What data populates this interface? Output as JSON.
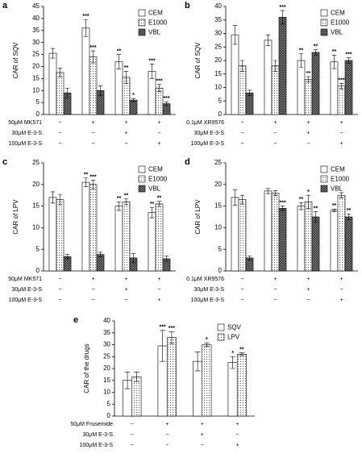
{
  "chart_data": [
    {
      "type": "bar",
      "panel": "a",
      "y_label": "CAR of SQV",
      "ylim": [
        0,
        45
      ],
      "yticks": [
        0,
        5,
        10,
        15,
        20,
        25,
        30,
        35,
        40,
        45
      ],
      "legend": "top-right",
      "series": [
        {
          "name": "CEM",
          "fill": "white",
          "values": [
            25.5,
            36,
            22,
            18
          ],
          "errors": [
            2,
            3.5,
            3,
            3
          ],
          "significance": [
            null,
            "***",
            "**",
            "***"
          ]
        },
        {
          "name": "E1000",
          "fill": "dots",
          "values": [
            17.5,
            24,
            15.5,
            11
          ],
          "errors": [
            1.8,
            2.5,
            2.5,
            1.5
          ],
          "significance": [
            null,
            "***",
            "**",
            "***"
          ]
        },
        {
          "name": "VBL",
          "fill": "hatch",
          "values": [
            9,
            10,
            6,
            4.5
          ],
          "errors": [
            2,
            2,
            0.7,
            0.8
          ],
          "significance": [
            null,
            null,
            "*",
            "***"
          ]
        }
      ],
      "conditions": [
        {
          "label": "50μM MK571",
          "marks": [
            "−",
            "+",
            "+",
            "+"
          ]
        },
        {
          "label": "30μM E-3-S",
          "marks": [
            "−",
            "−",
            "+",
            "−"
          ]
        },
        {
          "label": "100μM E-3-S",
          "marks": [
            "−",
            "−",
            "−",
            "+"
          ]
        }
      ]
    },
    {
      "type": "bar",
      "panel": "b",
      "y_label": "CAR of SQV",
      "ylim": [
        0,
        40
      ],
      "yticks": [
        0,
        5,
        10,
        15,
        20,
        25,
        30,
        35,
        40
      ],
      "legend": "top-right",
      "series": [
        {
          "name": "CEM",
          "fill": "white",
          "values": [
            29.5,
            27.5,
            20,
            19.5
          ],
          "errors": [
            3.5,
            2,
            2.5,
            2.5
          ],
          "significance": [
            null,
            null,
            "**",
            "**"
          ]
        },
        {
          "name": "E1000",
          "fill": "dots",
          "values": [
            18,
            18,
            13,
            10.5
          ],
          "errors": [
            2,
            2,
            1,
            1
          ],
          "significance": [
            null,
            null,
            "**",
            "***"
          ]
        },
        {
          "name": "VBL",
          "fill": "hatch",
          "values": [
            8,
            36,
            23,
            20
          ],
          "errors": [
            1,
            2.5,
            1,
            1
          ],
          "significance": [
            null,
            "***",
            "**",
            "***"
          ]
        }
      ],
      "conditions": [
        {
          "label": "0.1μM XR9576",
          "marks": [
            "−",
            "+",
            "+",
            "+"
          ]
        },
        {
          "label": "30μM E-3-S",
          "marks": [
            "−",
            "−",
            "+",
            "−"
          ]
        },
        {
          "label": "100μM E-3-S",
          "marks": [
            "−",
            "−",
            "−",
            "+"
          ]
        }
      ]
    },
    {
      "type": "bar",
      "panel": "c",
      "y_label": "CAR of LPV",
      "ylim": [
        0,
        25
      ],
      "yticks": [
        0,
        5,
        10,
        15,
        20,
        25
      ],
      "legend": "top-right",
      "series": [
        {
          "name": "CEM",
          "fill": "white",
          "values": [
            17,
            20.5,
            15,
            13.5
          ],
          "errors": [
            1.3,
            1,
            1,
            1.2
          ],
          "significance": [
            null,
            "**",
            "**",
            "**"
          ]
        },
        {
          "name": "E1000",
          "fill": "dots",
          "values": [
            16.5,
            20,
            16,
            15.5
          ],
          "errors": [
            1.2,
            1,
            0.7,
            0.6
          ],
          "significance": [
            null,
            "***",
            "**",
            "**"
          ]
        },
        {
          "name": "VBL",
          "fill": "hatch",
          "values": [
            3.3,
            3.8,
            3,
            2.8
          ],
          "errors": [
            0.5,
            0.5,
            1,
            0.7
          ],
          "significance": [
            null,
            null,
            null,
            null
          ]
        }
      ],
      "conditions": [
        {
          "label": "50μM MK571",
          "marks": [
            "−",
            "+",
            "+",
            "+"
          ]
        },
        {
          "label": "30μM E-3-S",
          "marks": [
            "−",
            "−",
            "+",
            "−"
          ]
        },
        {
          "label": "100μM E-3-S",
          "marks": [
            "−",
            "−",
            "−",
            "+"
          ]
        }
      ]
    },
    {
      "type": "bar",
      "panel": "d",
      "y_label": "CAR of LPV",
      "ylim": [
        0,
        25
      ],
      "yticks": [
        0,
        5,
        10,
        15,
        20,
        25
      ],
      "legend": "top-right",
      "series": [
        {
          "name": "CEM",
          "fill": "white",
          "values": [
            17,
            18.5,
            15,
            14
          ],
          "errors": [
            1.8,
            0.6,
            0.8,
            0.3
          ],
          "significance": [
            null,
            null,
            "**",
            "**"
          ]
        },
        {
          "name": "E1000",
          "fill": "dots",
          "values": [
            16.5,
            18,
            16,
            17.5
          ],
          "errors": [
            1,
            0.6,
            1.5,
            0.6
          ],
          "significance": [
            null,
            null,
            "*",
            null
          ]
        },
        {
          "name": "VBL",
          "fill": "hatch",
          "values": [
            3,
            14.5,
            12.5,
            12.5
          ],
          "errors": [
            0.5,
            0.5,
            1.2,
            0.7
          ],
          "significance": [
            null,
            "***",
            "**",
            "**"
          ]
        }
      ],
      "conditions": [
        {
          "label": "0.1μM XR9576",
          "marks": [
            "−",
            "+",
            "+",
            "+"
          ]
        },
        {
          "label": "30μM E-3-S",
          "marks": [
            "−",
            "−",
            "+",
            "−"
          ]
        },
        {
          "label": "100μM E-3-S",
          "marks": [
            "−",
            "−",
            "−",
            "+"
          ]
        }
      ]
    },
    {
      "type": "bar",
      "panel": "e",
      "y_label": "CAR of the drugs",
      "ylim": [
        0,
        40
      ],
      "yticks": [
        0,
        5,
        10,
        15,
        20,
        25,
        30,
        35,
        40
      ],
      "legend": "top-right",
      "series": [
        {
          "name": "SQV",
          "fill": "white",
          "values": [
            15,
            29.5,
            23,
            22.5
          ],
          "errors": [
            3.5,
            6.5,
            4,
            2.5
          ],
          "significance": [
            null,
            "***",
            null,
            "*"
          ]
        },
        {
          "name": "LPV",
          "fill": "dots",
          "values": [
            16.5,
            33,
            30,
            26
          ],
          "errors": [
            2,
            2.5,
            0.8,
            0.6
          ],
          "significance": [
            null,
            "***",
            "*",
            "**"
          ]
        }
      ],
      "conditions": [
        {
          "label": "50μM Frusemide",
          "marks": [
            "−",
            "+",
            "+",
            "+"
          ]
        },
        {
          "label": "30μM E-3-S",
          "marks": [
            "−",
            "−",
            "+",
            "−"
          ]
        },
        {
          "label": "100μM E-3-S",
          "marks": [
            "−",
            "−",
            "−",
            "+"
          ]
        }
      ]
    }
  ]
}
